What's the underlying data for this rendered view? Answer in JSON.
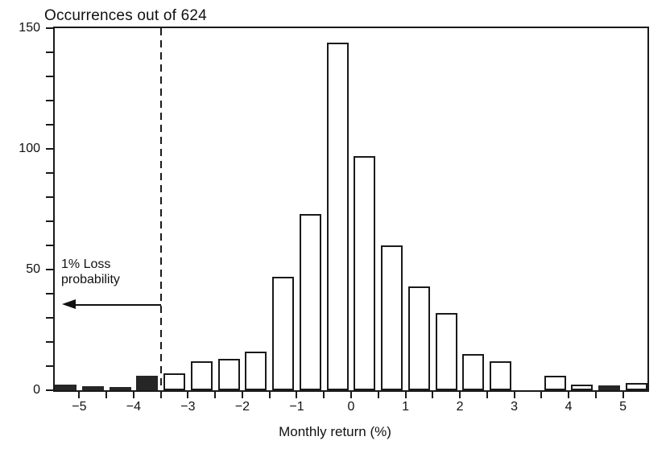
{
  "chart_data": {
    "type": "bar",
    "subtype": "histogram",
    "title": "Occurrences out of 624",
    "xlabel": "Monthly return (%)",
    "ylabel": "",
    "xlim": [
      -5.45,
      5.45
    ],
    "ylim": [
      0,
      150
    ],
    "grid": false,
    "legend": "none",
    "y_tick_step": 10,
    "y_label_values": [
      0,
      50,
      100,
      150
    ],
    "x_tick_min": -5,
    "x_tick_max": 5,
    "x_tick_step": 0.5,
    "x_label_values": [
      -5,
      -4,
      -3,
      -2,
      -1,
      0,
      1,
      2,
      3,
      4,
      5
    ],
    "bin_width": 0.5,
    "bars": [
      {
        "center": -5.25,
        "count": 2.5,
        "filled": true
      },
      {
        "center": -4.75,
        "count": 1.8,
        "filled": true
      },
      {
        "center": -4.25,
        "count": 0.8,
        "filled": true
      },
      {
        "center": -3.75,
        "count": 6,
        "filled": true
      },
      {
        "center": -3.25,
        "count": 7,
        "filled": false
      },
      {
        "center": -2.75,
        "count": 12,
        "filled": false
      },
      {
        "center": -2.25,
        "count": 13,
        "filled": false
      },
      {
        "center": -1.75,
        "count": 16,
        "filled": false
      },
      {
        "center": -1.25,
        "count": 47,
        "filled": false
      },
      {
        "center": -0.75,
        "count": 73,
        "filled": false
      },
      {
        "center": -0.25,
        "count": 144,
        "filled": false
      },
      {
        "center": 0.25,
        "count": 97,
        "filled": false
      },
      {
        "center": 0.75,
        "count": 60,
        "filled": false
      },
      {
        "center": 1.25,
        "count": 43,
        "filled": false
      },
      {
        "center": 1.75,
        "count": 32,
        "filled": false
      },
      {
        "center": 2.25,
        "count": 15,
        "filled": false
      },
      {
        "center": 2.75,
        "count": 12,
        "filled": false
      },
      {
        "center": 3.25,
        "count": 0,
        "filled": false
      },
      {
        "center": 3.75,
        "count": 6,
        "filled": false
      },
      {
        "center": 4.25,
        "count": 2.5,
        "filled": false
      },
      {
        "center": 4.75,
        "count": 2,
        "filled": true
      },
      {
        "center": 5.25,
        "count": 3,
        "filled": false
      }
    ],
    "threshold_line": {
      "x": -3.5,
      "style": "dashed"
    },
    "annotation": {
      "text": "1% Loss probability",
      "line1": "1% Loss",
      "line2": "probability",
      "arrow_y": 35.5,
      "arrow_from_x": -3.5,
      "arrow_direction": "left"
    },
    "colors": {
      "axis": "#1a1a1a",
      "bar_outline": "#1a1a1a",
      "bar_fill_open": "#ffffff",
      "bar_fill_dark": "#262626",
      "text": "#111111",
      "background": "#ffffff"
    }
  }
}
